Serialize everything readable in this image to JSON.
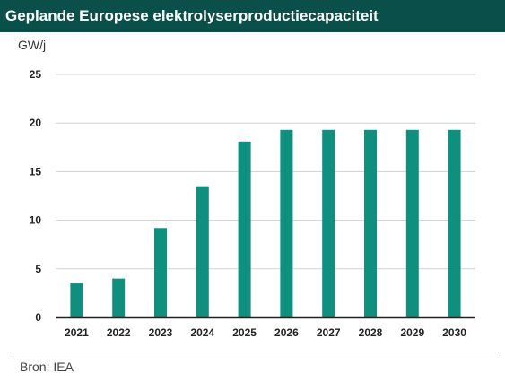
{
  "chart_data": {
    "type": "bar",
    "title": "Geplande Europese elektrolyserproductiecapaciteit",
    "ylabel": "GW/j",
    "xlabel": "",
    "categories": [
      "2021",
      "2022",
      "2023",
      "2024",
      "2025",
      "2026",
      "2027",
      "2028",
      "2029",
      "2030"
    ],
    "values": [
      3.5,
      4.0,
      9.2,
      13.5,
      18.1,
      19.3,
      19.3,
      19.3,
      19.3,
      19.3
    ],
    "ylim": [
      0,
      25
    ],
    "yticks": [
      0,
      5,
      10,
      15,
      20,
      25
    ],
    "grid": true,
    "bar_color": "#0f8f7e",
    "source": "Bron: IEA"
  },
  "colors": {
    "title_background": "#0b4f4a",
    "bars": "#0f8f7e",
    "grid": "#d0d0d0",
    "axis": "#222222"
  }
}
